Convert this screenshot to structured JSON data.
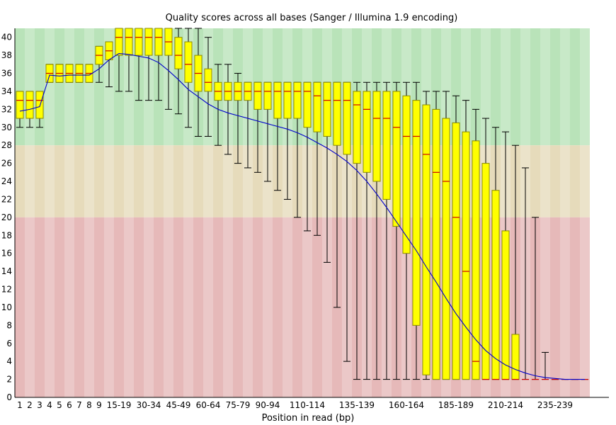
{
  "chart_data": {
    "type": "box",
    "title": "Quality scores across all bases (Sanger / Illumina 1.9 encoding)",
    "xlabel": "Position in read (bp)",
    "ylabel": "",
    "ylim": [
      0,
      41
    ],
    "yticks": [
      0,
      2,
      4,
      6,
      8,
      10,
      12,
      14,
      16,
      18,
      20,
      22,
      24,
      26,
      28,
      30,
      32,
      34,
      36,
      38,
      40
    ],
    "zones": [
      {
        "name": "good",
        "from": 28,
        "to": 41,
        "color": "#b9e3b9"
      },
      {
        "name": "reasonable",
        "from": 20,
        "to": 28,
        "color": "#e6dbbb"
      },
      {
        "name": "poor",
        "from": 0,
        "to": 20,
        "color": "#e6b9b9"
      }
    ],
    "categories": [
      "1",
      "2",
      "3",
      "4",
      "5",
      "6",
      "7",
      "8",
      "9",
      "10-14",
      "15-19",
      "20-24",
      "25-29",
      "30-34",
      "35-39",
      "40-44",
      "45-49",
      "50-54",
      "55-59",
      "60-64",
      "65-69",
      "70-74",
      "75-79",
      "80-84",
      "85-89",
      "90-94",
      "95-99",
      "100-104",
      "105-109",
      "110-114",
      "115-119",
      "120-124",
      "125-129",
      "130-134",
      "135-139",
      "140-144",
      "145-149",
      "150-154",
      "155-159",
      "160-164",
      "165-169",
      "170-174",
      "175-179",
      "180-184",
      "185-189",
      "190-194",
      "195-199",
      "200-204",
      "205-209",
      "210-214",
      "215-219",
      "220-224",
      "225-229",
      "230-234",
      "235-239",
      "240-244",
      "245-249",
      "250-251"
    ],
    "x_tick_labels": [
      "1",
      "2",
      "3",
      "4",
      "5",
      "6",
      "7",
      "8",
      "9",
      "15-19",
      "30-34",
      "45-49",
      "60-64",
      "75-79",
      "90-94",
      "110-114",
      "135-139",
      "160-164",
      "185-189",
      "210-214",
      "235-239"
    ],
    "x_tick_indices": [
      0,
      1,
      2,
      3,
      4,
      5,
      6,
      7,
      8,
      10,
      13,
      16,
      19,
      22,
      25,
      29,
      34,
      39,
      44,
      49,
      54
    ],
    "lower_whisker": [
      30,
      30,
      30,
      35,
      35,
      35,
      35,
      35,
      35,
      34.5,
      34,
      34,
      33,
      33,
      33,
      32,
      31.5,
      30,
      29,
      29,
      28,
      27,
      26,
      25.5,
      25,
      24,
      23,
      22,
      20,
      18.5,
      18,
      15,
      10,
      4,
      2,
      2,
      2,
      2,
      2,
      2,
      2,
      2,
      2,
      2,
      2,
      2,
      2,
      2,
      2,
      2,
      2,
      2,
      2,
      2,
      2,
      2,
      2,
      2
    ],
    "q1": [
      31,
      31,
      31,
      35,
      35,
      35,
      35,
      35,
      37,
      37.5,
      38,
      38,
      38,
      38,
      38,
      38,
      36.5,
      35,
      34,
      34,
      33,
      33,
      33,
      33,
      32,
      32,
      31,
      31,
      31,
      30,
      29.5,
      29,
      28,
      27,
      26,
      25,
      24,
      22,
      19,
      16,
      8,
      2.5,
      2,
      2,
      2,
      2,
      2,
      2,
      2,
      2,
      2,
      2,
      2,
      2,
      2,
      2,
      2,
      2
    ],
    "median": [
      33,
      33,
      33,
      36,
      36,
      36,
      36,
      36,
      38,
      38.5,
      40,
      40,
      40,
      40,
      40,
      39.5,
      38,
      37,
      36,
      35,
      34,
      34,
      34,
      34,
      34,
      34,
      34,
      34,
      34,
      34,
      33.5,
      33,
      33,
      33,
      32.5,
      32,
      31,
      31,
      30,
      29,
      29,
      27,
      25,
      24,
      20,
      14,
      4,
      2,
      2,
      2,
      2,
      2,
      2,
      2,
      2,
      2,
      2,
      2
    ],
    "q3": [
      34,
      34,
      34,
      37,
      37,
      37,
      37,
      37,
      39,
      39.5,
      41,
      41,
      41,
      41,
      41,
      41,
      40,
      39.5,
      38,
      36.5,
      35,
      35,
      35,
      35,
      35,
      35,
      35,
      35,
      35,
      35,
      35,
      35,
      35,
      35,
      34,
      34,
      34,
      34,
      34,
      33.5,
      33,
      32.5,
      32,
      31,
      30.5,
      29.5,
      28.5,
      26,
      23,
      18.5,
      7,
      2,
      2,
      2,
      2,
      2,
      2,
      2
    ],
    "upper_whisker": [
      34,
      34,
      34,
      37,
      37,
      37,
      37,
      37,
      39,
      39.5,
      41,
      41,
      41,
      41,
      41,
      41,
      41,
      41,
      41,
      40,
      37,
      37,
      36,
      35,
      35,
      35,
      35,
      35,
      35,
      35,
      35,
      35,
      35,
      35,
      35,
      35,
      35,
      35,
      35,
      35,
      35,
      34,
      34,
      34,
      33.5,
      33,
      32,
      31,
      30,
      29.5,
      28,
      25.5,
      20,
      5,
      2,
      2,
      2,
      2
    ],
    "mean": [
      31.8,
      32,
      32.3,
      35.8,
      35.7,
      35.8,
      35.8,
      35.8,
      36.5,
      37.5,
      38.2,
      38.1,
      37.9,
      37.7,
      37.2,
      36.3,
      35.3,
      34.2,
      33.4,
      32.6,
      32.0,
      31.6,
      31.3,
      31.0,
      30.7,
      30.4,
      30.1,
      29.8,
      29.4,
      28.9,
      28.3,
      27.7,
      27.0,
      26.2,
      25.2,
      24.0,
      22.6,
      21.1,
      19.5,
      17.9,
      16.3,
      14.5,
      12.8,
      11.0,
      9.3,
      7.8,
      6.4,
      5.2,
      4.3,
      3.6,
      3.1,
      2.7,
      2.4,
      2.2,
      2.1,
      2.0,
      2.0,
      2.0
    ],
    "colors": {
      "box_fill": "#ffff00",
      "box_stroke": "#8b8b00",
      "median_line": "#cc0000",
      "mean_line": "#0000cc",
      "whisker": "#000000",
      "stripe": "#ffffff"
    }
  }
}
